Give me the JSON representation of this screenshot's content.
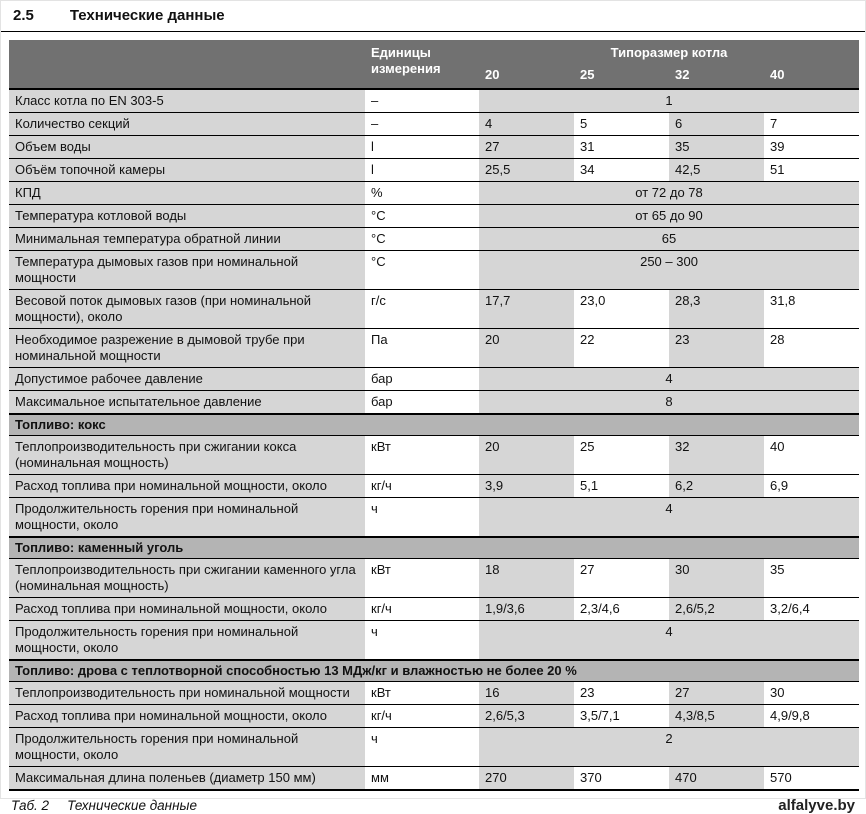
{
  "page": {
    "section_number": "2.5",
    "title": "Технические данные",
    "caption_label": "Таб. 2",
    "caption_text": "Технические данные",
    "watermark": "alfalyve.by"
  },
  "table": {
    "colors": {
      "header_bg": "#717171",
      "header_text": "#ffffff",
      "section_bg": "#b4b4b4",
      "shade_bg": "#d6d6d6",
      "border": "#000000"
    },
    "header": {
      "units_label": "Единицы измерения",
      "group_label": "Типоразмер котла",
      "sizes": [
        "20",
        "25",
        "32",
        "40"
      ]
    },
    "rows": [
      {
        "type": "data",
        "label": "Класс котла по EN 303-5",
        "unit": "–",
        "span": "1"
      },
      {
        "type": "data",
        "label": "Количество секций",
        "unit": "–",
        "values": [
          "4",
          "5",
          "6",
          "7"
        ]
      },
      {
        "type": "data",
        "label": "Объем воды",
        "unit": "l",
        "values": [
          "27",
          "31",
          "35",
          "39"
        ]
      },
      {
        "type": "data",
        "label": "Объём топочной камеры",
        "unit": "l",
        "values": [
          "25,5",
          "34",
          "42,5",
          "51"
        ]
      },
      {
        "type": "data",
        "label": "КПД",
        "unit": "%",
        "span": "от 72 до 78"
      },
      {
        "type": "data",
        "label": "Температура котловой воды",
        "unit": "°C",
        "span": "от 65 до 90"
      },
      {
        "type": "data",
        "label": "Минимальная температура обратной линии",
        "unit": "°C",
        "span": "65"
      },
      {
        "type": "data",
        "label": "Температура дымовых газов при номинальной мощности",
        "unit": "°C",
        "span": "250 – 300"
      },
      {
        "type": "data",
        "label": "Весовой поток дымовых газов (при номинальной мощности), около",
        "unit": "г/с",
        "values": [
          "17,7",
          "23,0",
          "28,3",
          "31,8"
        ]
      },
      {
        "type": "data",
        "label": "Необходимое разрежение в дымовой трубе  при номинальной мощности",
        "unit": "Па",
        "values": [
          "20",
          "22",
          "23",
          "28"
        ]
      },
      {
        "type": "data",
        "label": "Допустимое рабочее давление",
        "unit": "бар",
        "span": "4"
      },
      {
        "type": "data",
        "label": "Максимальное испытательное давление",
        "unit": "бар",
        "span": "8"
      },
      {
        "type": "section",
        "label": "Топливо: кокс"
      },
      {
        "type": "data",
        "label": "Теплопроизводительность при сжигании кокса (номинальная мощность)",
        "unit": "кВт",
        "values": [
          "20",
          "25",
          "32",
          "40"
        ]
      },
      {
        "type": "data",
        "label": "Расход топлива при номинальной мощности, около",
        "unit": "кг/ч",
        "values": [
          "3,9",
          "5,1",
          "6,2",
          "6,9"
        ]
      },
      {
        "type": "data",
        "label": "Продолжительность горения при номинальной мощности, около",
        "unit": "ч",
        "span": "4"
      },
      {
        "type": "section",
        "label": "Топливо: каменный уголь"
      },
      {
        "type": "data",
        "label": "Теплопроизводительность при сжигании каменного угла (номинальная мощность)",
        "unit": "кВт",
        "values": [
          "18",
          "27",
          "30",
          "35"
        ]
      },
      {
        "type": "data",
        "label": "Расход топлива при номинальной мощности, около",
        "unit": "кг/ч",
        "values": [
          "1,9/3,6",
          "2,3/4,6",
          "2,6/5,2",
          "3,2/6,4"
        ]
      },
      {
        "type": "data",
        "label": "Продолжительность горения при номинальной мощности, около",
        "unit": "ч",
        "span": "4"
      },
      {
        "type": "section",
        "label": "Топливо: дрова с теплотворной способностью 13 МДж/кг и влажностью не более 20 %"
      },
      {
        "type": "data",
        "label": "Теплопроизводительность при номинальной мощности",
        "unit": "кВт",
        "values": [
          "16",
          "23",
          "27",
          "30"
        ]
      },
      {
        "type": "data",
        "label": "Расход топлива при номинальной мощности, около",
        "unit": "кг/ч",
        "values": [
          "2,6/5,3",
          "3,5/7,1",
          "4,3/8,5",
          "4,9/9,8"
        ]
      },
      {
        "type": "data",
        "label": "Продолжительность горения при номинальной мощности, около",
        "unit": "ч",
        "span": "2"
      },
      {
        "type": "data",
        "label": "Максимальная длина поленьев (диаметр 150 мм)",
        "unit": "мм",
        "values": [
          "270",
          "370",
          "470",
          "570"
        ]
      }
    ]
  }
}
